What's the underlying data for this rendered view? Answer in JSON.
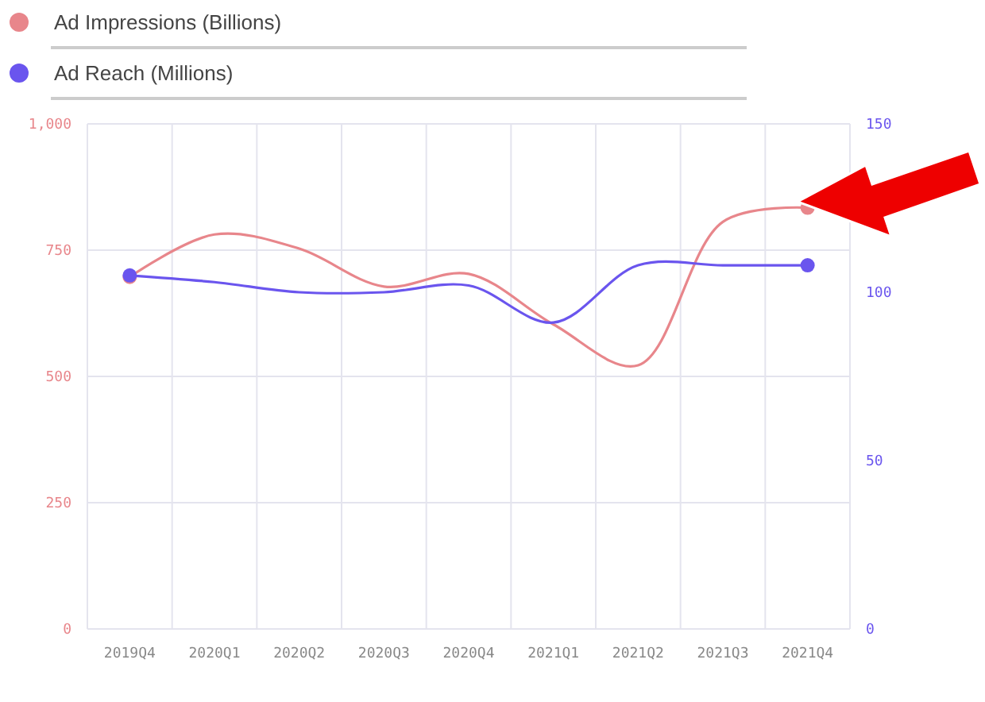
{
  "chart_data": {
    "type": "line",
    "categories": [
      "2019Q4",
      "2020Q1",
      "2020Q2",
      "2020Q3",
      "2020Q4",
      "2021Q1",
      "2021Q2",
      "2021Q3",
      "2021Q4"
    ],
    "series": [
      {
        "name": "Ad Impressions (Billions)",
        "color": "#e8868b",
        "values": [
          697,
          781,
          753,
          678,
          703,
          603,
          522,
          806,
          834
        ]
      },
      {
        "name": "Ad Reach (Millions)",
        "color": "#6a55ee",
        "axis": "y2",
        "values": [
          105,
          103,
          100,
          100,
          102,
          91,
          108,
          108,
          108
        ]
      }
    ],
    "ylim": [
      0,
      1000
    ],
    "yticks": [
      0,
      250,
      500,
      750,
      {
        "value": 1000,
        "label": "1,000"
      }
    ],
    "y2lim": [
      0,
      150
    ],
    "y2ticks": [
      0,
      50,
      100,
      150
    ],
    "grid": true,
    "legend": "top left"
  }
}
